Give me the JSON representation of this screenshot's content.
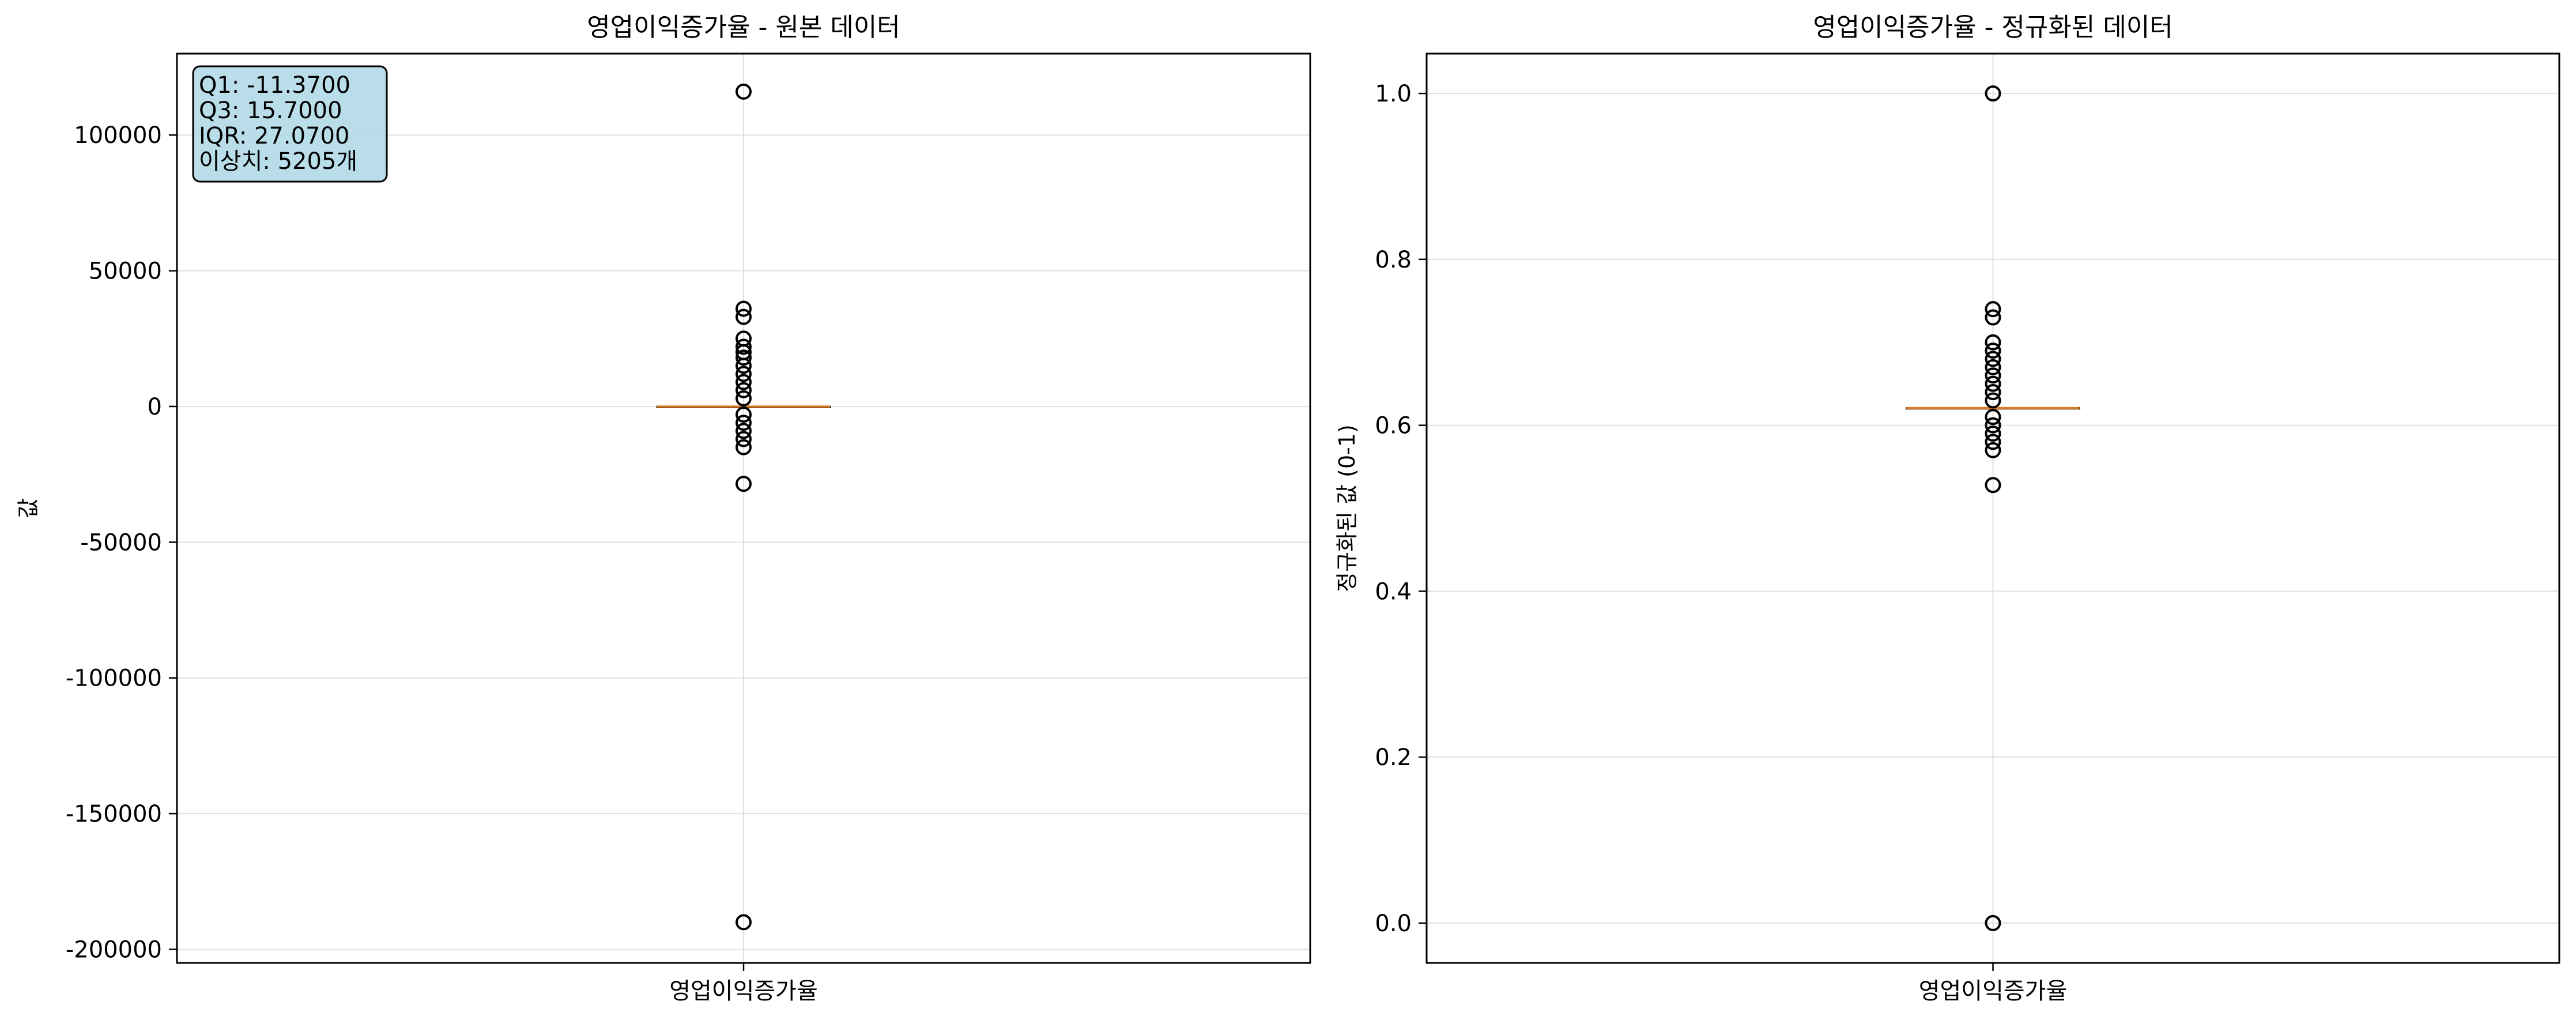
{
  "chart_data": [
    {
      "type": "box",
      "title": "영업이익증가율 - 원본 데이터",
      "xlabel": "",
      "ylabel": "값",
      "categories": [
        "영업이익증가율"
      ],
      "ylim": [
        -205000,
        130000
      ],
      "yticks": [
        100000,
        50000,
        0,
        -50000,
        -100000,
        -150000,
        -200000
      ],
      "ytick_labels": [
        "100000",
        "50000",
        "0",
        "-50000",
        "-100000",
        "-150000",
        "-200000"
      ],
      "grid": true,
      "box": {
        "q1": -11.37,
        "median": 0,
        "q3": 15.7,
        "whisker_low": -52,
        "whisker_high": 56
      },
      "outliers": [
        116000,
        36000,
        33000,
        25000,
        22000,
        20000,
        18000,
        15000,
        12000,
        9000,
        6000,
        3000,
        -3000,
        -6000,
        -9000,
        -12000,
        -15000,
        -28500,
        -190000
      ],
      "stats_box": [
        "Q1: -11.3700",
        "Q3: 15.7000",
        "IQR: 27.0700",
        "이상치: 5205개"
      ]
    },
    {
      "type": "box",
      "title": "영업이익증가율 - 정규화된 데이터",
      "xlabel": "",
      "ylabel": "정규화된 값 (0-1)",
      "categories": [
        "영업이익증가율"
      ],
      "ylim": [
        -0.048,
        1.048
      ],
      "yticks": [
        1.0,
        0.8,
        0.6,
        0.4,
        0.2,
        0.0
      ],
      "ytick_labels": [
        "1.0",
        "0.8",
        "0.6",
        "0.4",
        "0.2",
        "0.0"
      ],
      "grid": true,
      "box": {
        "q1": 0.6209,
        "median": 0.6209,
        "q3": 0.621,
        "whisker_low": 0.6208,
        "whisker_high": 0.6211
      },
      "outliers": [
        1.0,
        0.74,
        0.73,
        0.7,
        0.69,
        0.68,
        0.67,
        0.66,
        0.65,
        0.64,
        0.63,
        0.61,
        0.6,
        0.59,
        0.58,
        0.57,
        0.528,
        0.0
      ]
    }
  ],
  "colors": {
    "median": "#e07b21",
    "box": "#000000",
    "grid": "#e0e0e0",
    "stats_box_fill": "#add8e6"
  }
}
